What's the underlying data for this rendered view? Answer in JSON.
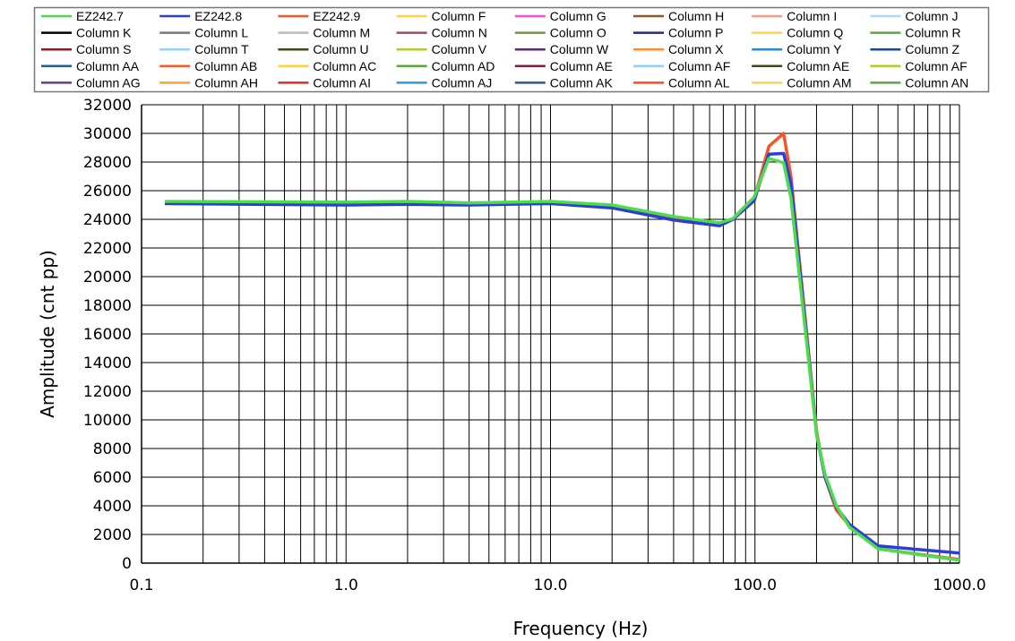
{
  "chart_data": {
    "type": "line",
    "title": "",
    "xlabel": "Frequency  (Hz)",
    "ylabel": "Amplitude  (cnt  pp)",
    "xscale": "log",
    "xlim": [
      0.1,
      1000
    ],
    "ylim": [
      0,
      32000
    ],
    "grid": true,
    "legend_placement": "top",
    "x_tick_labels": [
      "0.1",
      "1.0",
      "10.0",
      "100.0",
      "1000.0"
    ],
    "x_tick_values": [
      0.1,
      1,
      10,
      100,
      1000
    ],
    "y_tick_values": [
      0,
      2000,
      4000,
      6000,
      8000,
      10000,
      12000,
      14000,
      16000,
      18000,
      20000,
      22000,
      24000,
      26000,
      28000,
      30000,
      32000
    ],
    "x": [
      0.13,
      1,
      2,
      4,
      10,
      20,
      40,
      67,
      78,
      99,
      117,
      138,
      150,
      200,
      220,
      250,
      290,
      400,
      1000
    ],
    "series": [
      {
        "name": "EZ242.7",
        "color": "#4ddc4d",
        "values": [
          25250,
          25200,
          25250,
          25150,
          25250,
          25000,
          24200,
          23750,
          24050,
          25550,
          28250,
          27950,
          25500,
          9000,
          6200,
          4000,
          2500,
          1000,
          200
        ]
      },
      {
        "name": "EZ242.8",
        "color": "#2b3fd8",
        "values": [
          25100,
          25000,
          25050,
          25000,
          25100,
          24800,
          23950,
          23550,
          24000,
          25300,
          28550,
          28600,
          26500,
          9000,
          6000,
          3900,
          2700,
          1200,
          700
        ]
      },
      {
        "name": "EZ242.9",
        "color": "#f4562a",
        "values": [
          25150,
          25100,
          25150,
          25050,
          25200,
          24900,
          24050,
          23650,
          24000,
          25400,
          29100,
          30000,
          27000,
          9200,
          6000,
          3700,
          2600,
          1000,
          250
        ]
      }
    ],
    "draw_order": [
      2,
      1,
      0
    ],
    "legend": [
      {
        "label": "EZ242.7",
        "color": "#4ddc4d"
      },
      {
        "label": "EZ242.8",
        "color": "#2b3fd8"
      },
      {
        "label": "EZ242.9",
        "color": "#f4562a"
      },
      {
        "label": "Column F",
        "color": "#ffd04a"
      },
      {
        "label": "Column G",
        "color": "#ff4fe0"
      },
      {
        "label": "Column H",
        "color": "#8b5a2b"
      },
      {
        "label": "Column I",
        "color": "#ff9a8a"
      },
      {
        "label": "Column J",
        "color": "#a8d8ff"
      },
      {
        "label": "Column K",
        "color": "#000000"
      },
      {
        "label": "Column L",
        "color": "#777777"
      },
      {
        "label": "Column M",
        "color": "#bbbbbb"
      },
      {
        "label": "Column N",
        "color": "#a8475f"
      },
      {
        "label": "Column O",
        "color": "#6f9a3f"
      },
      {
        "label": "Column P",
        "color": "#1f2a8a"
      },
      {
        "label": "Column Q",
        "color": "#ffd04a"
      },
      {
        "label": "Column R",
        "color": "#5aa83a"
      },
      {
        "label": "Column S",
        "color": "#8a1a2a"
      },
      {
        "label": "Column T",
        "color": "#8fd0ff"
      },
      {
        "label": "Column U",
        "color": "#3a4a1a"
      },
      {
        "label": "Column V",
        "color": "#b0cc2a"
      },
      {
        "label": "Column W",
        "color": "#5a2a7a"
      },
      {
        "label": "Column X",
        "color": "#ff8a2a"
      },
      {
        "label": "Column Y",
        "color": "#2a8ad8"
      },
      {
        "label": "Column Z",
        "color": "#1a4a8a"
      },
      {
        "label": "Column AA",
        "color": "#2a5a9a"
      },
      {
        "label": "Column AB",
        "color": "#ff5a2a"
      },
      {
        "label": "Column AC",
        "color": "#ffd04a"
      },
      {
        "label": "Column AD",
        "color": "#5aa83a"
      },
      {
        "label": "Column AE",
        "color": "#8a1a3a"
      },
      {
        "label": "Column AF",
        "color": "#8fd0ff"
      },
      {
        "label": "Column AE",
        "color": "#3a4a1a"
      },
      {
        "label": "Column AF",
        "color": "#b0cc2a"
      },
      {
        "label": "Column AG",
        "color": "#6a3a8a"
      },
      {
        "label": "Column AH",
        "color": "#ffa03a"
      },
      {
        "label": "Column AI",
        "color": "#e02a2a"
      },
      {
        "label": "Column AJ",
        "color": "#2a9ae0"
      },
      {
        "label": "Column AK",
        "color": "#2a5a9a"
      },
      {
        "label": "Column AL",
        "color": "#ff4a1a"
      },
      {
        "label": "Column AM",
        "color": "#ffd04a"
      },
      {
        "label": "Column AN",
        "color": "#5aa83a"
      }
    ]
  }
}
